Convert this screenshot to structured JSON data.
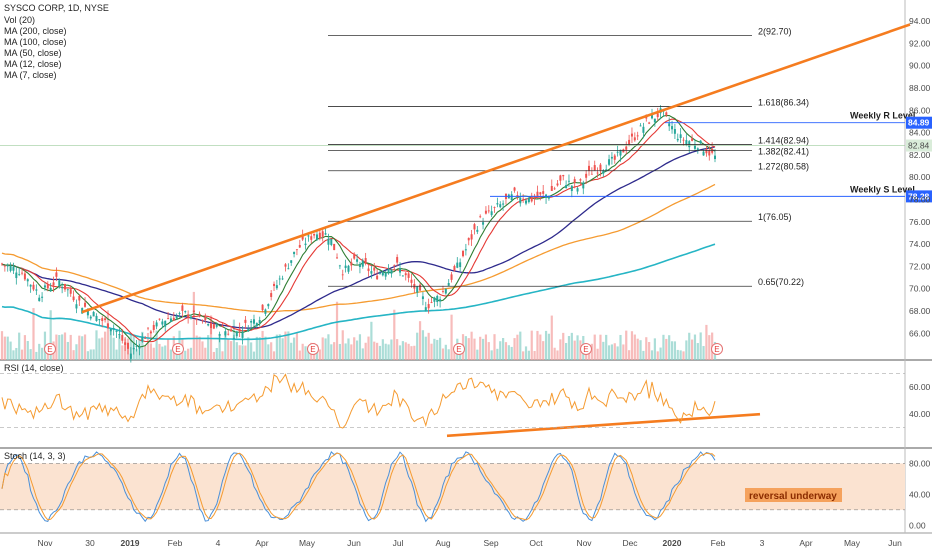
{
  "chart_data": [
    {
      "type": "candlestick",
      "symbol_title": "SYSCO CORP, 1D, NYSE",
      "legend": [
        "Vol (20)",
        "MA (200, close)",
        "MA (100, close)",
        "MA (50, close)",
        "MA (12, close)",
        "MA (7, close)"
      ],
      "y_ticks": [
        "94.00",
        "92.00",
        "90.00",
        "88.00",
        "86.00",
        "84.00",
        "82.00",
        "80.00",
        "78.00",
        "76.00",
        "74.00",
        "72.00",
        "70.00",
        "68.00",
        "66.00"
      ],
      "ylim": [
        64.5,
        95
      ],
      "last_price": "82.84",
      "fib_levels": [
        {
          "label": "2(92.70)",
          "value": 92.7
        },
        {
          "label": "1.618(86.34)",
          "value": 86.34
        },
        {
          "label": "1.414(82.94)",
          "value": 82.94
        },
        {
          "label": "1.382(82.41)",
          "value": 82.41
        },
        {
          "label": "1.272(80.58)",
          "value": 80.58
        },
        {
          "label": "1(76.05)",
          "value": 76.05
        },
        {
          "label": "0.65(70.22)",
          "value": 70.22
        }
      ],
      "horizontal_levels": [
        {
          "label": "Weekly R Level",
          "value": 84.89,
          "badge": "84.89",
          "color": "#2962ff"
        },
        {
          "label": "Weekly S Level",
          "value": 78.28,
          "badge": "78.28",
          "color": "#2962ff"
        }
      ],
      "colors": {
        "up": "#26a69a",
        "down": "#ef5350",
        "ma200": "#26b5c5",
        "ma100": "#f59b31",
        "ma50": "#2e2a8c",
        "ma12": "#e53935",
        "ma7": "#2e7d32",
        "trend": "#f57c1f",
        "price_badge_bg": "#d9ecd9"
      },
      "earnings_marker": "E"
    },
    {
      "type": "line",
      "title": "RSI (14, close)",
      "y_ticks": [
        "60.00",
        "40.00"
      ],
      "ylim": [
        15,
        80
      ]
    },
    {
      "type": "line",
      "title": "Stoch (14, 3, 3)",
      "y_ticks": [
        "80.00",
        "40.00",
        "0.00"
      ],
      "ylim": [
        -10,
        100
      ],
      "annotation": "reversal underway",
      "band": [
        20,
        80
      ]
    }
  ],
  "x_ticks": [
    "Nov",
    "30",
    "2019",
    "Feb",
    "4",
    "Apr",
    "May",
    "Jun",
    "Jul",
    "Aug",
    "Sep",
    "Oct",
    "Nov",
    "Dec",
    "2020",
    "Feb",
    "3",
    "Apr",
    "May",
    "Jun"
  ]
}
